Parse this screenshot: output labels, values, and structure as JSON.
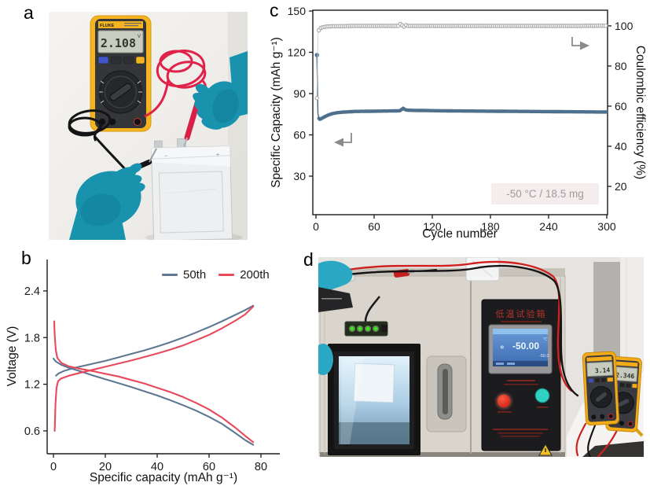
{
  "figure": {
    "panel_labels": {
      "a": "a",
      "b": "b",
      "c": "c",
      "d": "d"
    }
  },
  "panel_a": {
    "multimeter": {
      "brand_label": "FLUKE",
      "display_value": "2.108",
      "display_unit": "V"
    },
    "pouch_cell": {
      "negative_mark": "−",
      "positive_mark": "+"
    }
  },
  "panel_d": {
    "chamber": {
      "title": "低温试验箱",
      "screen_main": "-50.00",
      "screen_unit": "℃",
      "screen_sub": "-50.0",
      "snow_icon": "❄"
    },
    "multimeter_left": {
      "display_value": "3.14"
    },
    "multimeter_right": {
      "display_value": "2.346"
    }
  },
  "chart_data": [
    {
      "id": "chart-b",
      "panel": "b",
      "type": "line",
      "xlabel": "Specific capacity (mAh g⁻¹)",
      "ylabel": "Voltage (V)",
      "xlim": [
        -2.42,
        87.27
      ],
      "ylim": [
        0.306,
        2.804
      ],
      "xticks": [
        0,
        20,
        40,
        60,
        80
      ],
      "yticks": [
        0.6,
        1.2,
        1.8,
        2.4
      ],
      "grid": false,
      "legend_position": "top-right-inside",
      "legend": [
        {
          "label": "50th",
          "color": "#5e7891"
        },
        {
          "label": "200th",
          "color": "#e9495a"
        }
      ],
      "series": [
        {
          "name": "50th-charge",
          "color": "#5e7891",
          "points": [
            [
              1,
              1.31
            ],
            [
              2,
              1.34
            ],
            [
              4,
              1.37
            ],
            [
              8,
              1.41
            ],
            [
              12,
              1.44
            ],
            [
              16,
              1.47
            ],
            [
              20,
              1.5
            ],
            [
              25,
              1.545
            ],
            [
              30,
              1.59
            ],
            [
              35,
              1.635
            ],
            [
              40,
              1.685
            ],
            [
              45,
              1.74
            ],
            [
              50,
              1.8
            ],
            [
              55,
              1.865
            ],
            [
              60,
              1.935
            ],
            [
              65,
              2.01
            ],
            [
              70,
              2.09
            ],
            [
              74,
              2.155
            ],
            [
              77,
              2.21
            ]
          ]
        },
        {
          "name": "50th-discharge",
          "color": "#5e7891",
          "points": [
            [
              0,
              1.53
            ],
            [
              1,
              1.49
            ],
            [
              3,
              1.45
            ],
            [
              6,
              1.41
            ],
            [
              10,
              1.37
            ],
            [
              15,
              1.315
            ],
            [
              20,
              1.265
            ],
            [
              25,
              1.215
            ],
            [
              30,
              1.165
            ],
            [
              35,
              1.11
            ],
            [
              40,
              1.055
            ],
            [
              45,
              0.995
            ],
            [
              50,
              0.93
            ],
            [
              55,
              0.86
            ],
            [
              60,
              0.78
            ],
            [
              65,
              0.69
            ],
            [
              70,
              0.575
            ],
            [
              74,
              0.48
            ],
            [
              77,
              0.42
            ]
          ]
        },
        {
          "name": "200th-charge",
          "color": "#e9495a",
          "points": [
            [
              0.5,
              0.6
            ],
            [
              0.8,
              0.95
            ],
            [
              1.2,
              1.15
            ],
            [
              1.8,
              1.24
            ],
            [
              3,
              1.275
            ],
            [
              6,
              1.31
            ],
            [
              10,
              1.345
            ],
            [
              15,
              1.385
            ],
            [
              20,
              1.425
            ],
            [
              25,
              1.465
            ],
            [
              30,
              1.505
            ],
            [
              35,
              1.55
            ],
            [
              40,
              1.595
            ],
            [
              45,
              1.645
            ],
            [
              50,
              1.7
            ],
            [
              55,
              1.765
            ],
            [
              60,
              1.835
            ],
            [
              65,
              1.92
            ],
            [
              70,
              2.015
            ],
            [
              74,
              2.1
            ],
            [
              77,
              2.2
            ]
          ]
        },
        {
          "name": "200th-discharge",
          "color": "#e9495a",
          "points": [
            [
              0.3,
              2.01
            ],
            [
              0.5,
              1.83
            ],
            [
              0.9,
              1.64
            ],
            [
              1.5,
              1.54
            ],
            [
              3,
              1.475
            ],
            [
              6,
              1.43
            ],
            [
              10,
              1.4
            ],
            [
              15,
              1.37
            ],
            [
              20,
              1.335
            ],
            [
              25,
              1.3
            ],
            [
              30,
              1.255
            ],
            [
              35,
              1.21
            ],
            [
              40,
              1.155
            ],
            [
              45,
              1.1
            ],
            [
              50,
              1.035
            ],
            [
              55,
              0.96
            ],
            [
              60,
              0.875
            ],
            [
              65,
              0.77
            ],
            [
              70,
              0.645
            ],
            [
              74,
              0.535
            ],
            [
              77,
              0.455
            ]
          ]
        }
      ]
    },
    {
      "id": "chart-c",
      "panel": "c",
      "type": "scatter-line",
      "xlabel": "Cycle number",
      "ylabel_left": "Specific Capacity (mAh g⁻¹)",
      "ylabel_right": "Coulombic efficiency (%)",
      "xlim": [
        -3.24,
        300.84
      ],
      "ylim_left": [
        2.0,
        150.57
      ],
      "ylim_right": [
        5.9,
        107.8
      ],
      "xticks": [
        0,
        60,
        120,
        180,
        240,
        300
      ],
      "yticks_left": [
        30,
        60,
        90,
        120,
        150
      ],
      "yticks_right": [
        20,
        40,
        60,
        80,
        100
      ],
      "grid": false,
      "annotation": {
        "text": "-50 °C / 18.5 mg",
        "bg_color": "#f5eded",
        "text_color": "#9b9b9b"
      },
      "series": [
        {
          "name": "specific-capacity",
          "axis": "left",
          "color": "#4e708c",
          "marker": "filled-circle",
          "points": [
            [
              1,
              118
            ],
            [
              2,
              75.5
            ],
            [
              3,
              72
            ],
            [
              4,
              71.3
            ],
            [
              5,
              71.6
            ],
            [
              6,
              72
            ],
            [
              8,
              72.8
            ],
            [
              10,
              73.5
            ],
            [
              12,
              74.2
            ],
            [
              15,
              75
            ],
            [
              18,
              75.6
            ],
            [
              22,
              76.1
            ],
            [
              26,
              76.4
            ],
            [
              30,
              76.6
            ],
            [
              35,
              76.8
            ],
            [
              40,
              77
            ],
            [
              50,
              77.1
            ],
            [
              60,
              77.2
            ],
            [
              70,
              77.3
            ],
            [
              80,
              77.4
            ],
            [
              86,
              77.5
            ],
            [
              88,
              78.2
            ],
            [
              90,
              79.3
            ],
            [
              92,
              78.3
            ],
            [
              95,
              77.9
            ],
            [
              100,
              77.8
            ],
            [
              110,
              77.7
            ],
            [
              120,
              77.6
            ],
            [
              140,
              77.4
            ],
            [
              160,
              77.3
            ],
            [
              180,
              77.2
            ],
            [
              200,
              77.1
            ],
            [
              220,
              77
            ],
            [
              240,
              76.9
            ],
            [
              260,
              76.8
            ],
            [
              280,
              76.7
            ],
            [
              300,
              76.6
            ]
          ]
        },
        {
          "name": "coulombic-efficiency",
          "axis": "right",
          "color": "#a8a8a8",
          "marker": "open-circle",
          "points": [
            [
              1,
              64
            ],
            [
              2,
              95.5
            ],
            [
              3,
              97.8
            ],
            [
              4,
              98.6
            ],
            [
              5,
              99
            ],
            [
              8,
              99.5
            ],
            [
              12,
              99.7
            ],
            [
              16,
              99.8
            ],
            [
              20,
              99.9
            ],
            [
              30,
              99.9
            ],
            [
              40,
              100
            ],
            [
              50,
              100
            ],
            [
              60,
              100
            ],
            [
              70,
              100
            ],
            [
              80,
              100
            ],
            [
              86,
              100
            ],
            [
              88,
              101.8
            ],
            [
              90,
              98.7
            ],
            [
              92,
              100.6
            ],
            [
              95,
              100
            ],
            [
              100,
              100
            ],
            [
              120,
              100
            ],
            [
              150,
              100
            ],
            [
              180,
              100
            ],
            [
              210,
              100
            ],
            [
              240,
              100
            ],
            [
              270,
              100
            ],
            [
              300,
              100.1
            ]
          ]
        }
      ]
    }
  ]
}
